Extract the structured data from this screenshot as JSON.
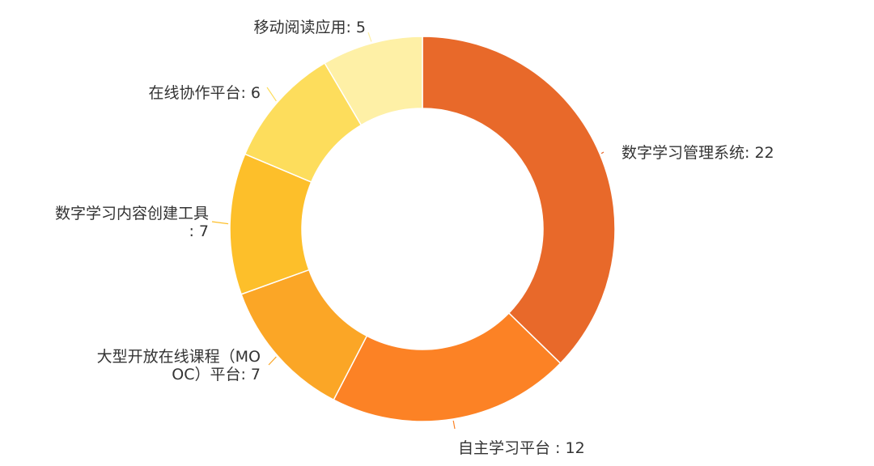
{
  "chart_data": {
    "type": "pie",
    "donut": true,
    "categories": [
      "数字学习管理系统",
      "自主学习平台",
      "大型开放在线课程（MOOC）平台",
      "数字学习内容创建工具",
      "在线协作平台",
      "移动阅读应用"
    ],
    "values": [
      22,
      12,
      7,
      7,
      6,
      5
    ],
    "labels": [
      {
        "lines": [
          "数字学习管理系统: 22"
        ]
      },
      {
        "lines": [
          "自主学习平台 : 12"
        ]
      },
      {
        "lines": [
          "大型开放在线课程（MO",
          "OC）平台: 7"
        ]
      },
      {
        "lines": [
          "数字学习内容创建工具",
          ": 7"
        ]
      },
      {
        "lines": [
          "在线协作平台: 6"
        ]
      },
      {
        "lines": [
          "移动阅读应用: 5"
        ]
      }
    ],
    "colors": [
      "#E8692A",
      "#FC8225",
      "#FBA626",
      "#FDBF2A",
      "#FDDD5C",
      "#FEF0A6"
    ],
    "legend": "none"
  }
}
